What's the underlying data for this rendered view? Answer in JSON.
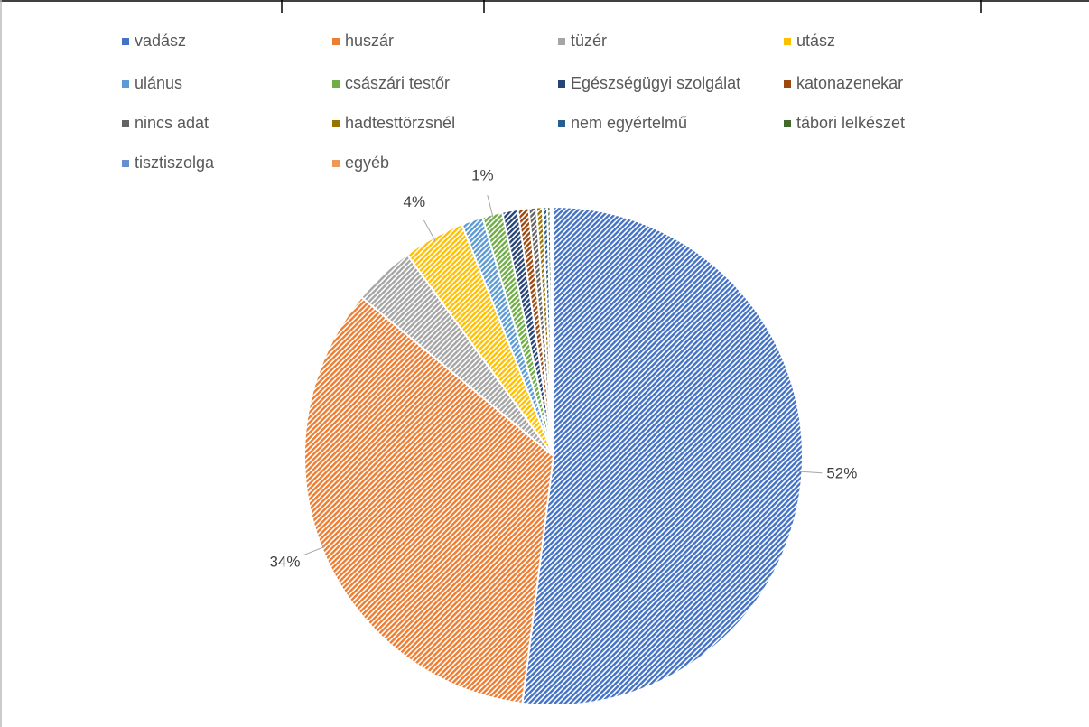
{
  "chart_data": {
    "type": "pie",
    "categories": [
      "vadász",
      "huszár",
      "tüzér",
      "utász",
      "ulánus",
      "császári testőr",
      "Egészségügyi szolgálat",
      "katonazenekar",
      "nincs adat",
      "hadtesttörzsnél",
      "nem egyértelmű",
      "tábori lelkészet",
      "tisztiszolga",
      "egyéb"
    ],
    "values": [
      52,
      34,
      4,
      4,
      1.4,
      1.3,
      1,
      0.7,
      0.5,
      0.4,
      0.3,
      0.2,
      0.1,
      0.1
    ],
    "value_labels": [
      "52%",
      "34%",
      null,
      "4%",
      null,
      "1%",
      null,
      null,
      null,
      null,
      null,
      null,
      null,
      null
    ],
    "colors": [
      "#4472c4",
      "#ed7d31",
      "#a5a5a5",
      "#ffc000",
      "#5b9bd5",
      "#70ad47",
      "#264478",
      "#9e480e",
      "#636363",
      "#997300",
      "#255e91",
      "#43682b",
      "#698ed0",
      "#f1975a"
    ],
    "pattern": "diagonal-hatch",
    "legend": "top"
  }
}
